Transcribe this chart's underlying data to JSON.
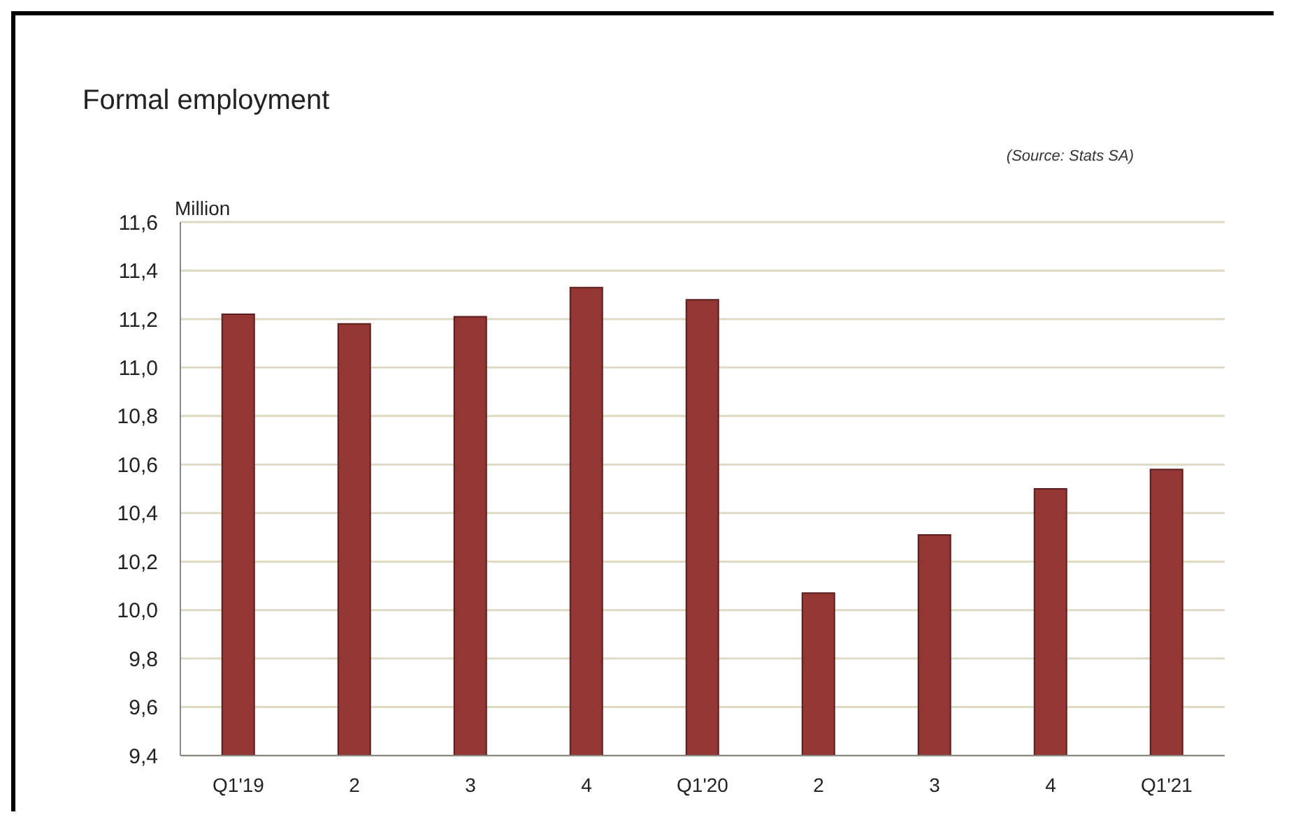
{
  "chart_data": {
    "type": "bar",
    "title": "Formal employment",
    "ylabel": "Million",
    "annotations": [
      "(Source: Stats SA)"
    ],
    "categories": [
      "Q1'19",
      "2",
      "3",
      "4",
      "Q1'20",
      "2",
      "3",
      "4",
      "Q1'21"
    ],
    "values": [
      11.22,
      11.18,
      11.21,
      11.33,
      11.28,
      10.07,
      10.31,
      10.5,
      10.58
    ],
    "color": "#943634",
    "ylim": [
      9.4,
      11.6
    ],
    "yticks": [
      {
        "value": 9.4,
        "label": "9,4"
      },
      {
        "value": 9.6,
        "label": "9,6"
      },
      {
        "value": 9.8,
        "label": "9,8"
      },
      {
        "value": 10.0,
        "label": "10,0"
      },
      {
        "value": 10.2,
        "label": "10,2"
      },
      {
        "value": 10.4,
        "label": "10,4"
      },
      {
        "value": 10.6,
        "label": "10,6"
      },
      {
        "value": 10.8,
        "label": "10,8"
      },
      {
        "value": 11.0,
        "label": "11,0"
      },
      {
        "value": 11.2,
        "label": "11,2"
      },
      {
        "value": 11.4,
        "label": "11,4"
      },
      {
        "value": 11.6,
        "label": "11,6"
      }
    ],
    "grid": "y",
    "legend": false
  }
}
